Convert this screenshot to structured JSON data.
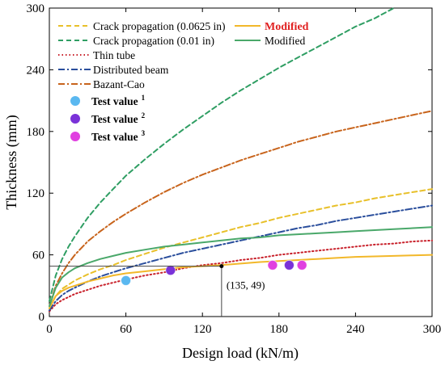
{
  "chart_data": {
    "type": "line",
    "xlabel": "Design load (kN/m)",
    "ylabel": "Thickness (mm)",
    "xlim": [
      0,
      300
    ],
    "ylim": [
      0,
      300
    ],
    "xticks": [
      "0",
      "60",
      "120",
      "180",
      "240",
      "300"
    ],
    "yticks": [
      "0",
      "60",
      "120",
      "180",
      "240",
      "300"
    ],
    "grid": false,
    "legend_placement": "top-left",
    "x": [
      0,
      5,
      10,
      15,
      20,
      30,
      40,
      50,
      60,
      75,
      90,
      105,
      120,
      135,
      150,
      165,
      180,
      195,
      210,
      225,
      240,
      255,
      270,
      285,
      300
    ],
    "series": [
      {
        "name": "Crack propagation (0.0625 in)",
        "color": "#e8c02a",
        "dash": "dashed",
        "values": [
          8,
          20,
          27,
          31,
          35,
          41,
          46,
          50,
          55,
          61,
          67,
          72,
          77,
          82,
          87,
          91,
          96,
          100,
          104,
          108,
          111,
          115,
          118,
          121,
          124
        ]
      },
      {
        "name": "Crack propagation (0.01 in)",
        "color": "#2f9e63",
        "dash": "dashed",
        "values": [
          15,
          40,
          56,
          68,
          78,
          96,
          111,
          124,
          137,
          153,
          168,
          182,
          195,
          208,
          220,
          231,
          242,
          252,
          262,
          272,
          282,
          290,
          300,
          null,
          null
        ]
      },
      {
        "name": "Thin tube",
        "color": "#c8202a",
        "dash": "dotted",
        "values": [
          5,
          12,
          16,
          19,
          22,
          26,
          30,
          33,
          36,
          40,
          43,
          47,
          50,
          52,
          55,
          57,
          60,
          62,
          64,
          66,
          68,
          70,
          71,
          73,
          74
        ]
      },
      {
        "name": "Distributed beam",
        "color": "#2a4e9c",
        "dash": "dashdot",
        "values": [
          6,
          15,
          21,
          25,
          28,
          34,
          39,
          43,
          47,
          52,
          57,
          62,
          66,
          70,
          74,
          78,
          82,
          86,
          89,
          93,
          96,
          99,
          102,
          105,
          108
        ]
      },
      {
        "name": "Bazant-Cao",
        "color": "#c8641c",
        "dash": "dashdot",
        "values": [
          10,
          30,
          42,
          52,
          60,
          73,
          83,
          92,
          100,
          111,
          121,
          130,
          138,
          145,
          152,
          158,
          164,
          170,
          175,
          180,
          184,
          188,
          192,
          196,
          200
        ]
      },
      {
        "name": "Modified",
        "color": "#f2b82a",
        "dash": "solid",
        "values": [
          8,
          20,
          25,
          28,
          30,
          34,
          37,
          40,
          42,
          44,
          46,
          48,
          49,
          50,
          51.5,
          53,
          54,
          55,
          56,
          57,
          58,
          58.5,
          59,
          59.5,
          60
        ]
      },
      {
        "name": "Modified",
        "color": "#4aa86a",
        "dash": "solid",
        "values": [
          10,
          28,
          38,
          43,
          47,
          52,
          56,
          59,
          62,
          65,
          68,
          70,
          72,
          74,
          76,
          77,
          79,
          80,
          81,
          82,
          83,
          84,
          85,
          86,
          87
        ]
      }
    ],
    "scatter_series": [
      {
        "name": "Test value",
        "sup": "1",
        "color": "#5ab8f0",
        "points": [
          [
            60,
            35
          ]
        ]
      },
      {
        "name": "Test value",
        "sup": "2",
        "color": "#7a32d8",
        "points": [
          [
            95,
            45
          ],
          [
            188,
            50
          ]
        ]
      },
      {
        "name": "Test value",
        "sup": "3",
        "color": "#e040e0",
        "points": [
          [
            175,
            50
          ],
          [
            198,
            50
          ]
        ]
      }
    ],
    "annotation": {
      "text": "(135, 49)",
      "x": 135,
      "y": 49
    }
  }
}
